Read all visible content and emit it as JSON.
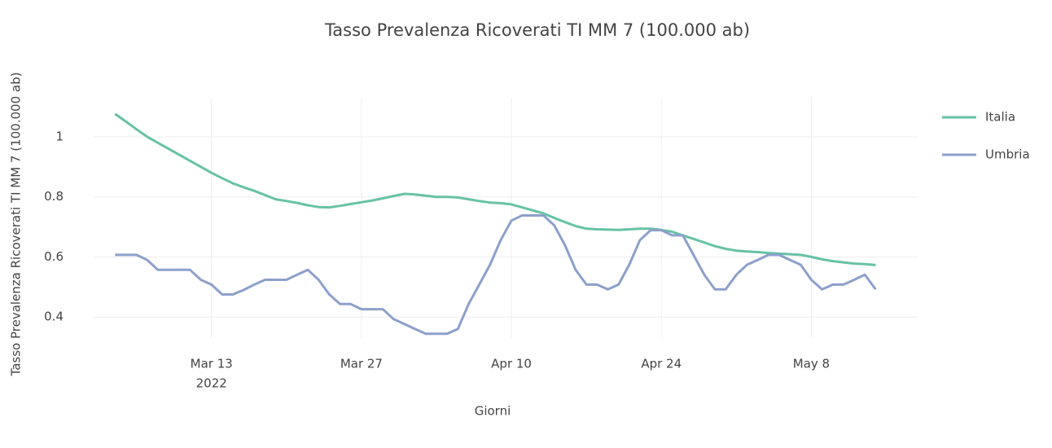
{
  "chart_data": {
    "type": "line",
    "title": "Tasso Prevalenza Ricoverati TI MM 7 (100.000 ab)",
    "x_label": "Giorni",
    "y_label": "Tasso Prevalenza Ricoverati TI MM 7 (100.000 ab)",
    "x": [
      "2022-03-04",
      "2022-03-05",
      "2022-03-06",
      "2022-03-07",
      "2022-03-08",
      "2022-03-09",
      "2022-03-10",
      "2022-03-11",
      "2022-03-12",
      "2022-03-13",
      "2022-03-14",
      "2022-03-15",
      "2022-03-16",
      "2022-03-17",
      "2022-03-18",
      "2022-03-19",
      "2022-03-20",
      "2022-03-21",
      "2022-03-22",
      "2022-03-23",
      "2022-03-24",
      "2022-03-25",
      "2022-03-26",
      "2022-03-27",
      "2022-03-28",
      "2022-03-29",
      "2022-03-30",
      "2022-03-31",
      "2022-04-01",
      "2022-04-02",
      "2022-04-03",
      "2022-04-04",
      "2022-04-05",
      "2022-04-06",
      "2022-04-07",
      "2022-04-08",
      "2022-04-09",
      "2022-04-10",
      "2022-04-11",
      "2022-04-12",
      "2022-04-13",
      "2022-04-14",
      "2022-04-15",
      "2022-04-16",
      "2022-04-17",
      "2022-04-18",
      "2022-04-19",
      "2022-04-20",
      "2022-04-21",
      "2022-04-22",
      "2022-04-23",
      "2022-04-24",
      "2022-04-25",
      "2022-04-26",
      "2022-04-27",
      "2022-04-28",
      "2022-04-29",
      "2022-04-30",
      "2022-05-01",
      "2022-05-02",
      "2022-05-03",
      "2022-05-04",
      "2022-05-05",
      "2022-05-06",
      "2022-05-07",
      "2022-05-08",
      "2022-05-09",
      "2022-05-10",
      "2022-05-11",
      "2022-05-12",
      "2022-05-13",
      "2022-05-14"
    ],
    "series": [
      {
        "name": "Italia",
        "color": "#66c2a5",
        "values": [
          1.076,
          1.051,
          1.025,
          1.0,
          0.98,
          0.96,
          0.94,
          0.92,
          0.9,
          0.88,
          0.862,
          0.845,
          0.832,
          0.82,
          0.806,
          0.792,
          0.786,
          0.78,
          0.772,
          0.766,
          0.765,
          0.77,
          0.776,
          0.782,
          0.788,
          0.795,
          0.803,
          0.81,
          0.808,
          0.804,
          0.8,
          0.8,
          0.798,
          0.792,
          0.786,
          0.781,
          0.779,
          0.775,
          0.765,
          0.755,
          0.745,
          0.73,
          0.716,
          0.703,
          0.694,
          0.692,
          0.691,
          0.69,
          0.692,
          0.694,
          0.694,
          0.69,
          0.684,
          0.672,
          0.66,
          0.648,
          0.636,
          0.627,
          0.621,
          0.618,
          0.616,
          0.613,
          0.611,
          0.609,
          0.607,
          0.6,
          0.592,
          0.586,
          0.582,
          0.578,
          0.576,
          0.573
        ]
      },
      {
        "name": "Umbria",
        "color": "#8da0cb",
        "values": [
          0.607,
          0.607,
          0.607,
          0.59,
          0.557,
          0.557,
          0.557,
          0.557,
          0.524,
          0.508,
          0.475,
          0.475,
          0.49,
          0.508,
          0.524,
          0.524,
          0.524,
          0.541,
          0.557,
          0.524,
          0.475,
          0.443,
          0.443,
          0.426,
          0.426,
          0.426,
          0.393,
          0.377,
          0.36,
          0.344,
          0.344,
          0.344,
          0.36,
          0.443,
          0.508,
          0.574,
          0.656,
          0.721,
          0.738,
          0.738,
          0.738,
          0.705,
          0.639,
          0.557,
          0.508,
          0.508,
          0.492,
          0.508,
          0.574,
          0.656,
          0.689,
          0.689,
          0.672,
          0.672,
          0.607,
          0.541,
          0.492,
          0.492,
          0.541,
          0.574,
          0.59,
          0.607,
          0.607,
          0.59,
          0.574,
          0.524,
          0.492,
          0.508,
          0.508,
          0.524,
          0.541,
          0.492
        ]
      }
    ],
    "xlim": [
      "2022-03-02",
      "2022-05-18"
    ],
    "xticks": [
      {
        "value": "2022-03-13",
        "label": "Mar 13",
        "sublabel": "2022"
      },
      {
        "value": "2022-03-27",
        "label": "Mar 27"
      },
      {
        "value": "2022-04-10",
        "label": "Apr 10"
      },
      {
        "value": "2022-04-24",
        "label": "Apr 24"
      },
      {
        "value": "2022-05-08",
        "label": "May 8"
      }
    ],
    "ylim": [
      0.33,
      1.13
    ],
    "yticks": [
      0.4,
      0.6,
      0.8,
      1
    ],
    "grid": true,
    "legend": "right"
  }
}
